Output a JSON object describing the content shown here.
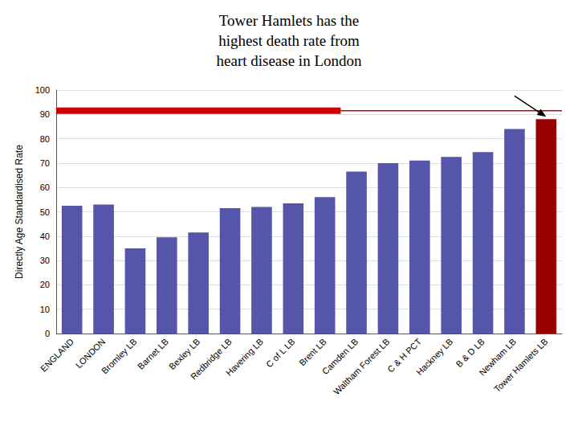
{
  "chart_data": {
    "type": "bar",
    "title": "Tower Hamlets has the\nhighest death rate from\nheart disease in London",
    "categories": [
      "ENGLAND",
      "LONDON",
      "Bromley LB",
      "Barnet LB",
      "Bexley LB",
      "Redbridge LB",
      "Havering LB",
      "C of L LB",
      "Brent LB",
      "Camden LB",
      "Waltham Forest LB",
      "C & H PCT",
      "Hackney LB",
      "B & D LB",
      "Newham LB",
      "Tower Hamlets LB"
    ],
    "values": [
      52.5,
      53.0,
      35.0,
      39.5,
      41.5,
      51.5,
      52.0,
      53.5,
      56.0,
      66.5,
      70.0,
      71.0,
      72.5,
      74.5,
      84.0,
      88.0
    ],
    "colors": [
      "#5555aa",
      "#5555aa",
      "#5555aa",
      "#5555aa",
      "#5555aa",
      "#5555aa",
      "#5555aa",
      "#5555aa",
      "#5555aa",
      "#5555aa",
      "#5555aa",
      "#5555aa",
      "#5555aa",
      "#5555aa",
      "#5555aa",
      "#990000"
    ],
    "ylabel": "Directly Age Standardised Rate",
    "ylim": [
      0,
      100
    ],
    "yticks": [
      0,
      10,
      20,
      30,
      40,
      50,
      60,
      70,
      80,
      90,
      100
    ],
    "grid": true,
    "reference_line": {
      "value": 91.5,
      "color": "#cc0000",
      "thick_until": "Brent LB"
    }
  }
}
